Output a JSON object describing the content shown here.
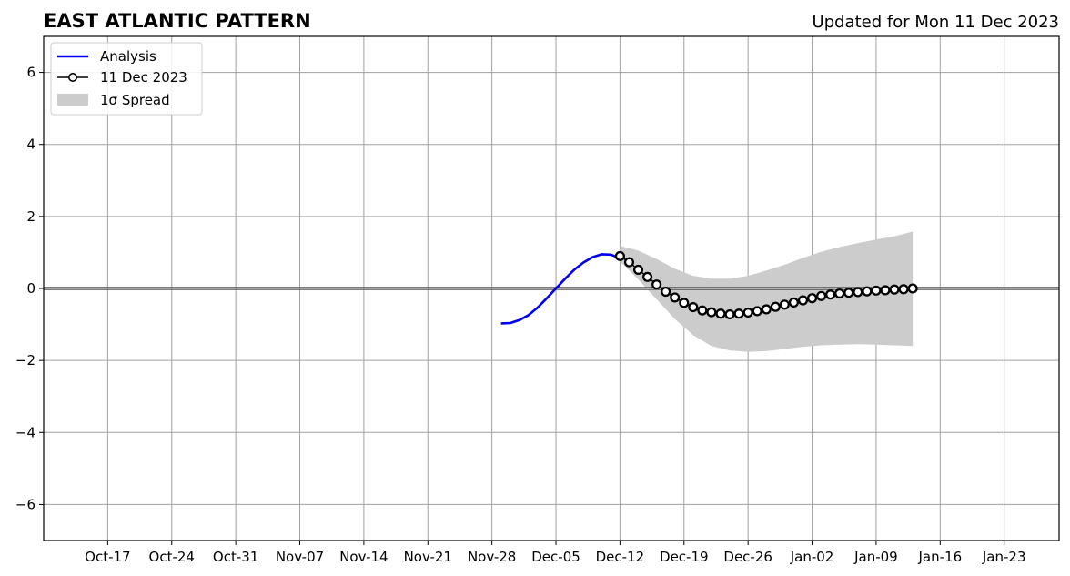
{
  "chart_data": {
    "type": "line",
    "title": "EAST ATLANTIC PATTERN",
    "subtitle": "Updated for Mon 11 Dec 2023",
    "xlabel": "",
    "ylabel": "",
    "x_axis": {
      "type": "date",
      "range": [
        "2023-10-10",
        "2024-01-29"
      ],
      "tick_dates": [
        "2023-10-17",
        "2023-10-24",
        "2023-10-31",
        "2023-11-07",
        "2023-11-14",
        "2023-11-21",
        "2023-11-28",
        "2023-12-05",
        "2023-12-12",
        "2023-12-19",
        "2023-12-26",
        "2024-01-02",
        "2024-01-09",
        "2024-01-16",
        "2024-01-23"
      ],
      "tick_labels": [
        "Oct-17",
        "Oct-24",
        "Oct-31",
        "Nov-07",
        "Nov-14",
        "Nov-21",
        "Nov-28",
        "Dec-05",
        "Dec-12",
        "Dec-19",
        "Dec-26",
        "Jan-02",
        "Jan-09",
        "Jan-16",
        "Jan-23"
      ]
    },
    "y_axis": {
      "range": [
        -7,
        7
      ],
      "ticks": [
        -6,
        -4,
        -2,
        0,
        2,
        4,
        6
      ],
      "tick_labels": [
        "−6",
        "−4",
        "−2",
        "0",
        "2",
        "4",
        "6"
      ]
    },
    "grid": true,
    "zero_line": true,
    "legend": {
      "placement": "top-left",
      "entries": [
        {
          "label": "Analysis",
          "style": "line",
          "color": "#0000ee"
        },
        {
          "label": "11 Dec 2023",
          "style": "line-marker",
          "color": "#000000"
        },
        {
          "label": "1σ Spread",
          "style": "patch",
          "color": "#cccccc"
        }
      ]
    },
    "series": [
      {
        "name": "Analysis",
        "color": "#0000ee",
        "points": [
          [
            "2023-11-29",
            -0.97
          ],
          [
            "2023-11-30",
            -0.96
          ],
          [
            "2023-12-01",
            -0.88
          ],
          [
            "2023-12-02",
            -0.74
          ],
          [
            "2023-12-03",
            -0.53
          ],
          [
            "2023-12-04",
            -0.27
          ],
          [
            "2023-12-05",
            0.0
          ],
          [
            "2023-12-06",
            0.27
          ],
          [
            "2023-12-07",
            0.52
          ],
          [
            "2023-12-08",
            0.72
          ],
          [
            "2023-12-09",
            0.87
          ],
          [
            "2023-12-10",
            0.95
          ],
          [
            "2023-12-11",
            0.94
          ],
          [
            "2023-12-12",
            0.84
          ]
        ]
      },
      {
        "name": "11 Dec 2023",
        "color": "#000000",
        "marker": "circle",
        "points": [
          [
            "2023-12-12",
            0.9
          ],
          [
            "2023-12-13",
            0.73
          ],
          [
            "2023-12-14",
            0.52
          ],
          [
            "2023-12-15",
            0.32
          ],
          [
            "2023-12-16",
            0.11
          ],
          [
            "2023-12-17",
            -0.09
          ],
          [
            "2023-12-18",
            -0.25
          ],
          [
            "2023-12-19",
            -0.4
          ],
          [
            "2023-12-20",
            -0.52
          ],
          [
            "2023-12-21",
            -0.61
          ],
          [
            "2023-12-22",
            -0.66
          ],
          [
            "2023-12-23",
            -0.7
          ],
          [
            "2023-12-24",
            -0.72
          ],
          [
            "2023-12-25",
            -0.7
          ],
          [
            "2023-12-26",
            -0.67
          ],
          [
            "2023-12-27",
            -0.63
          ],
          [
            "2023-12-28",
            -0.58
          ],
          [
            "2023-12-29",
            -0.51
          ],
          [
            "2023-12-30",
            -0.45
          ],
          [
            "2023-12-31",
            -0.39
          ],
          [
            "2024-01-01",
            -0.33
          ],
          [
            "2024-01-02",
            -0.27
          ],
          [
            "2024-01-03",
            -0.21
          ],
          [
            "2024-01-04",
            -0.17
          ],
          [
            "2024-01-05",
            -0.14
          ],
          [
            "2024-01-06",
            -0.12
          ],
          [
            "2024-01-07",
            -0.1
          ],
          [
            "2024-01-08",
            -0.08
          ],
          [
            "2024-01-09",
            -0.06
          ],
          [
            "2024-01-10",
            -0.05
          ],
          [
            "2024-01-11",
            -0.03
          ],
          [
            "2024-01-12",
            -0.02
          ],
          [
            "2024-01-13",
            0.0
          ]
        ]
      }
    ],
    "spread": {
      "name": "1σ Spread",
      "color": "#cccccc",
      "points": [
        [
          "2023-12-12",
          0.75,
          1.18
        ],
        [
          "2023-12-14",
          0.25,
          1.05
        ],
        [
          "2023-12-16",
          -0.3,
          0.82
        ],
        [
          "2023-12-18",
          -0.85,
          0.55
        ],
        [
          "2023-12-20",
          -1.3,
          0.35
        ],
        [
          "2023-12-22",
          -1.6,
          0.27
        ],
        [
          "2023-12-24",
          -1.72,
          0.27
        ],
        [
          "2023-12-26",
          -1.76,
          0.35
        ],
        [
          "2023-12-28",
          -1.74,
          0.5
        ],
        [
          "2023-12-30",
          -1.68,
          0.66
        ],
        [
          "2024-01-01",
          -1.62,
          0.85
        ],
        [
          "2024-01-03",
          -1.58,
          1.02
        ],
        [
          "2024-01-05",
          -1.56,
          1.15
        ],
        [
          "2024-01-07",
          -1.55,
          1.26
        ],
        [
          "2024-01-09",
          -1.56,
          1.36
        ],
        [
          "2024-01-11",
          -1.58,
          1.45
        ],
        [
          "2024-01-13",
          -1.6,
          1.58
        ]
      ]
    }
  }
}
